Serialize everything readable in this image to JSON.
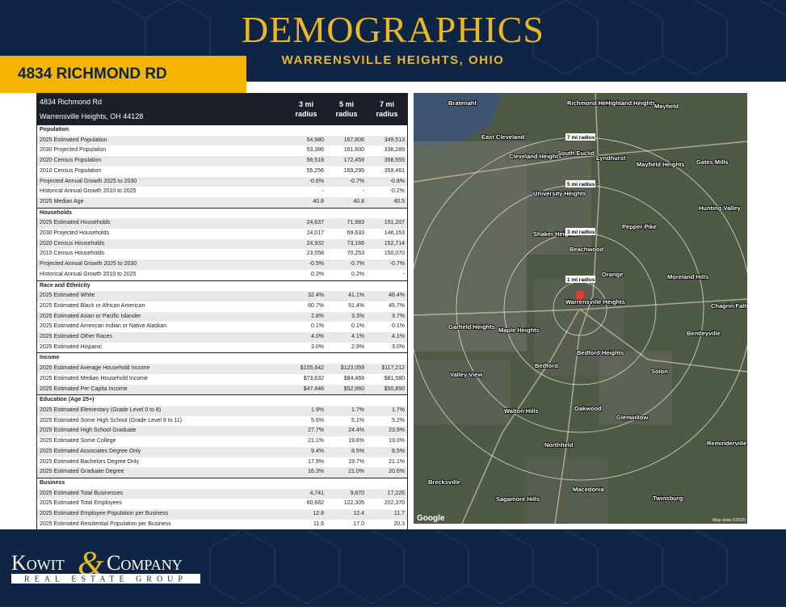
{
  "header": {
    "title": "DEMOGRAPHICS",
    "subtitle": "WARRENSVILLE HEIGHTS, OHIO",
    "address": "4834 RICHMOND RD"
  },
  "table": {
    "address": "4834 Richmond Rd",
    "city": "Warrensville Heights, OH 44128",
    "columns": [
      "3 mi radius",
      "5 mi radius",
      "7 mi radius"
    ],
    "sections": [
      {
        "title": "Population",
        "rows": [
          [
            "2025 Estimated Population",
            "54,980",
            "167,806",
            "349,513"
          ],
          [
            "2030 Projected Population",
            "53,386",
            "161,600",
            "336,289"
          ],
          [
            "2020 Census Population",
            "56,518",
            "172,459",
            "358,555"
          ],
          [
            "2010 Census Population",
            "55,256",
            "169,295",
            "359,481"
          ],
          [
            "Projected Annual Growth 2025 to 2030",
            "-0.6%",
            "-0.7%",
            "-0.8%"
          ],
          [
            "Historical Annual Growth 2010 to 2025",
            "-",
            "-",
            "-0.2%"
          ],
          [
            "2025 Median Age",
            "40.8",
            "40.8",
            "40.5"
          ]
        ]
      },
      {
        "title": "Households",
        "rows": [
          [
            "2025 Estimated Households",
            "24,637",
            "71,983",
            "151,207"
          ],
          [
            "2030 Projected Households",
            "24,017",
            "69,633",
            "146,153"
          ],
          [
            "2020 Census Households",
            "24,932",
            "73,166",
            "152,714"
          ],
          [
            "2010 Census Households",
            "23,558",
            "70,253",
            "150,070"
          ],
          [
            "Projected Annual Growth 2025 to 2030",
            "-0.5%",
            "-0.7%",
            "-0.7%"
          ],
          [
            "Historical Annual Growth 2010 to 2025",
            "0.3%",
            "0.2%",
            "-"
          ]
        ]
      },
      {
        "title": "Race and Ethnicity",
        "rows": [
          [
            "2025 Estimated White",
            "32.4%",
            "41.1%",
            "46.4%"
          ],
          [
            "2025 Estimated Black or African American",
            "60.7%",
            "51.4%",
            "45.7%"
          ],
          [
            "2025 Estimated Asian or Pacific Islander",
            "2.8%",
            "3.3%",
            "3.7%"
          ],
          [
            "2025 Estimated American Indian or Native Alaskan",
            "0.1%",
            "0.1%",
            "0.1%"
          ],
          [
            "2025 Estimated Other Races",
            "4.0%",
            "4.1%",
            "4.1%"
          ],
          [
            "2025 Estimated Hispanic",
            "3.0%",
            "2.9%",
            "3.0%"
          ]
        ]
      },
      {
        "title": "Income",
        "rows": [
          [
            "2025 Estimated Average Household Income",
            "$105,642",
            "$123,059",
            "$117,212"
          ],
          [
            "2025 Estimated Median Household Income",
            "$73,632",
            "$84,468",
            "$81,580"
          ],
          [
            "2025 Estimated Per Capita Income",
            "$47,446",
            "$52,960",
            "$50,850"
          ]
        ]
      },
      {
        "title": "Education (Age 25+)",
        "rows": [
          [
            "2025 Estimated Elementary (Grade Level 0 to 8)",
            "1.9%",
            "1.7%",
            "1.7%"
          ],
          [
            "2025 Estimated Some High School (Grade Level 9 to 11)",
            "5.6%",
            "5.1%",
            "5.2%"
          ],
          [
            "2025 Estimated High School Graduate",
            "27.7%",
            "24.4%",
            "23.9%"
          ],
          [
            "2025 Estimated Some College",
            "21.1%",
            "19.6%",
            "19.0%"
          ],
          [
            "2025 Estimated Associates Degree Only",
            "9.4%",
            "8.5%",
            "8.5%"
          ],
          [
            "2025 Estimated Bachelors Degree Only",
            "17.9%",
            "19.7%",
            "21.1%"
          ],
          [
            "2025 Estimated Graduate Degree",
            "16.3%",
            "21.0%",
            "20.6%"
          ]
        ]
      },
      {
        "title": "Business",
        "rows": [
          [
            "2025 Estimated Total Businesses",
            "4,741",
            "9,870",
            "17,226"
          ],
          [
            "2025 Estimated Total Employees",
            "60,682",
            "122,305",
            "202,370"
          ],
          [
            "2025 Estimated Employee Population per Business",
            "12.8",
            "12.4",
            "11.7"
          ],
          [
            "2025 Estimated Residential Population per Business",
            "11.6",
            "17.0",
            "20.3"
          ]
        ]
      }
    ]
  },
  "map": {
    "places": [
      "Bratenahl",
      "Richmond Heights",
      "Highland Heights",
      "Mayfield",
      "East Cleveland",
      "Cleveland Heights",
      "South Euclid",
      "Lyndhurst",
      "Mayfield Heights",
      "Gates Mills",
      "University Heights",
      "Hunting Valley",
      "Shaker Heights",
      "Pepper Pike",
      "Beachwood",
      "Orange",
      "Moreland Hills",
      "Warrensville Heights",
      "Garfield Heights",
      "Maple Heights",
      "Chagrin Falls",
      "Bentleyville",
      "Bedford Heights",
      "Bedford",
      "Solon",
      "Valley View",
      "Walton Hills",
      "Oakwood",
      "Glenwillow",
      "Northfield",
      "Reminderville",
      "Brecksville",
      "Macedonia",
      "Sagamore Hills",
      "Twinsburg"
    ],
    "radius_labels": [
      "7 mi radius",
      "5 mi radius",
      "3 mi radius",
      "1 mi radius"
    ],
    "brand": "Google",
    "credit": "Map data ©2025"
  },
  "logo": {
    "name1": "Kowit",
    "amp": "&",
    "name2": "Company",
    "tagline": "REAL ESTATE GROUP"
  }
}
